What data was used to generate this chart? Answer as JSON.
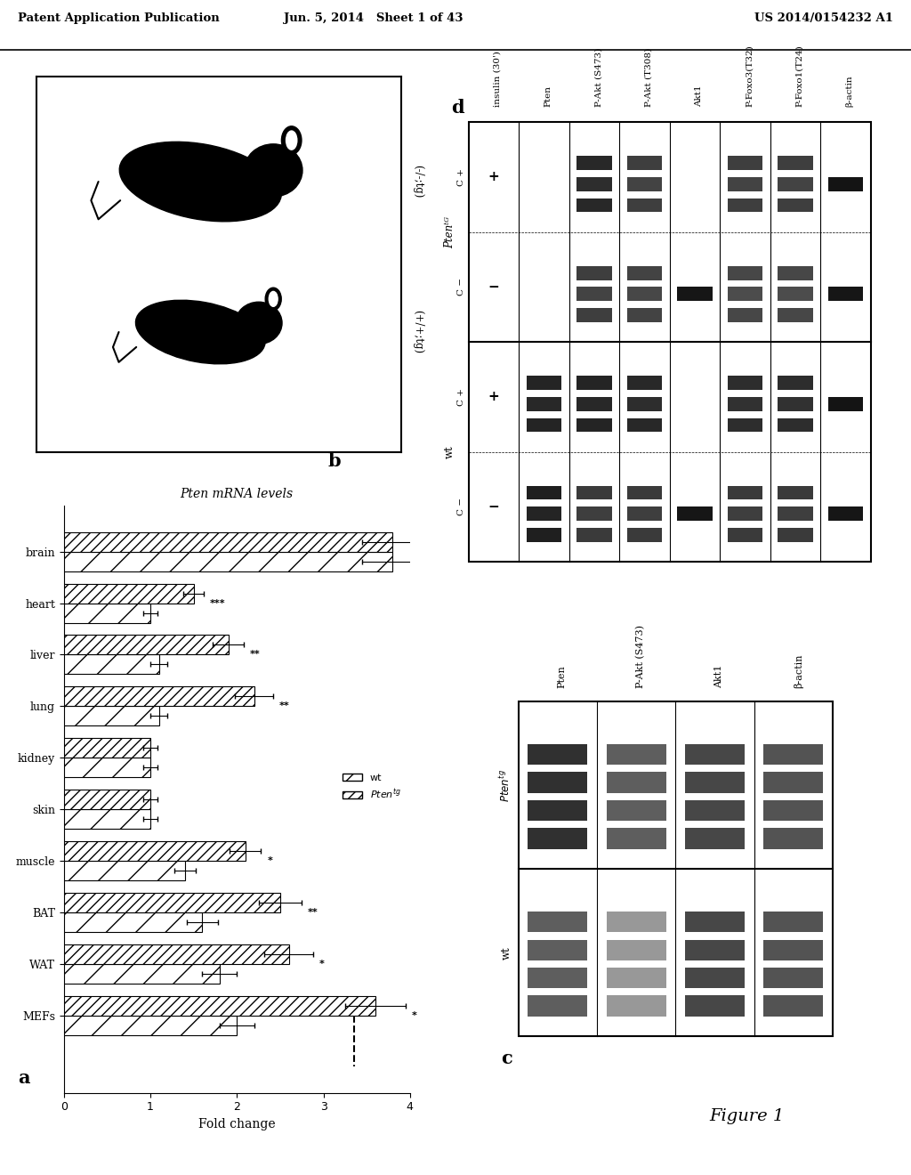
{
  "header_left": "Patent Application Publication",
  "header_mid": "Jun. 5, 2014   Sheet 1 of 43",
  "header_right": "US 2014/0154232 A1",
  "figure_label": "Figure 1",
  "panel_a": {
    "label": "a",
    "title": "Pten mRNA levels",
    "xlabel": "Fold change",
    "tissues": [
      "brain",
      "heart",
      "liver",
      "lung",
      "kidney",
      "skin",
      "muscle",
      "BAT",
      "WAT",
      "MEFs"
    ],
    "wt_values": [
      3.8,
      1.0,
      1.1,
      1.1,
      1.0,
      1.0,
      1.4,
      1.6,
      1.8,
      2.0
    ],
    "tg_values": [
      3.8,
      1.5,
      1.9,
      2.2,
      1.0,
      1.0,
      2.1,
      2.5,
      2.6,
      3.6
    ],
    "wt_errors": [
      0.35,
      0.08,
      0.1,
      0.1,
      0.08,
      0.08,
      0.12,
      0.18,
      0.2,
      0.2
    ],
    "tg_errors": [
      0.35,
      0.12,
      0.18,
      0.22,
      0.08,
      0.08,
      0.18,
      0.25,
      0.28,
      0.35
    ],
    "significance": [
      "",
      "***",
      "**",
      "**",
      "",
      "",
      "*",
      "**",
      "*",
      "*"
    ],
    "dashed_line_x": 3.35,
    "xlim": [
      0,
      4
    ],
    "xticks": [
      0,
      1,
      2,
      3,
      4
    ]
  },
  "panel_b": {
    "label": "b",
    "label_bottom": "(+/+;tg)",
    "label_top": "(-/-;tg)"
  },
  "panel_c": {
    "label": "c",
    "col_labels_top": [
      "Pten",
      "P-Akt (S473)",
      "Akt1",
      "β-actin"
    ],
    "row_labels_left": [
      "wt",
      "Ptenᵗᴳ"
    ],
    "num_cols": 4,
    "num_rows": 2,
    "bands_per_cell": 3
  },
  "panel_d": {
    "label": "d",
    "col_labels_top": [
      "insulin (30')",
      "Pten",
      "P-Akt (S473)",
      "P-Akt (T308)",
      "Akt1",
      "P-Foxo3(T32)",
      "P-Foxo1(T24)",
      "β-actin"
    ],
    "row_labels_left": [
      "C −",
      "C +",
      "C",
      "−",
      "C +"
    ],
    "row_group_labels": [
      [
        "wt",
        "-",
        "+"
      ],
      [
        "Ptenᵗᴳ",
        "−",
        "+"
      ]
    ],
    "num_cols": 8,
    "num_rows": 4
  },
  "background_color": "#ffffff",
  "text_color": "#000000"
}
